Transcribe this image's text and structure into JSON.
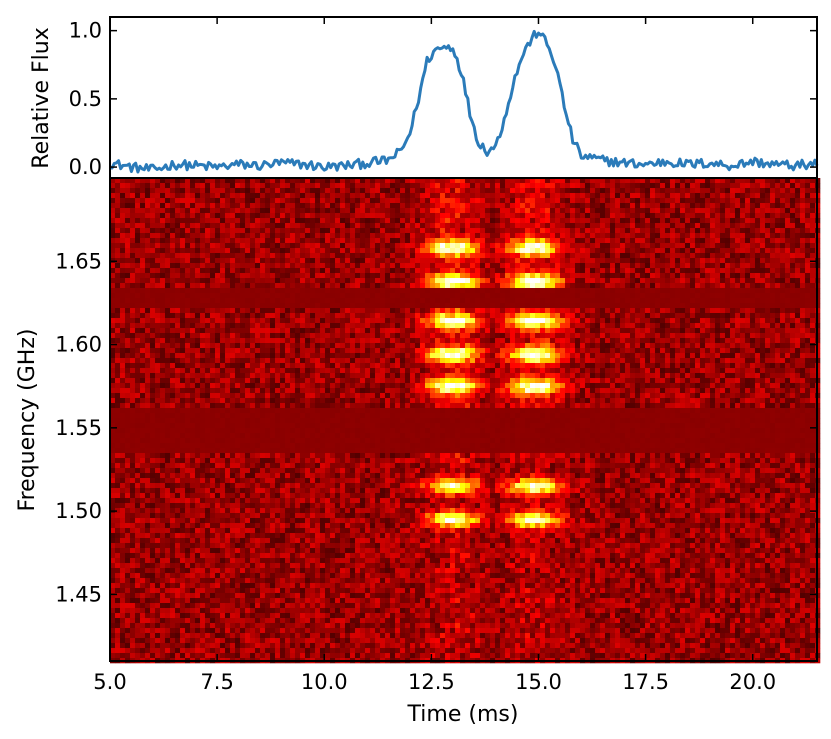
{
  "chart_data": [
    {
      "type": "line",
      "ylabel": "Relative Flux",
      "xlabel": "",
      "xlim": [
        5.0,
        21.5
      ],
      "ylim": [
        -0.08,
        1.1
      ],
      "yticks": [
        "0.0",
        "0.5",
        "1.0"
      ],
      "yticks_values": [
        0.0,
        0.5,
        1.0
      ],
      "line_color": "#2b7bb9",
      "series": [
        {
          "x": [
            5.0,
            5.5,
            6.0,
            6.5,
            7.0,
            7.5,
            8.0,
            8.5,
            9.0,
            9.5,
            10.0,
            10.5,
            11.0,
            11.5,
            11.8,
            12.0,
            12.2,
            12.4,
            12.6,
            12.8,
            13.0,
            13.2,
            13.4,
            13.6,
            13.8,
            14.0,
            14.2,
            14.4,
            14.6,
            14.8,
            15.0,
            15.2,
            15.4,
            15.6,
            15.8,
            16.0,
            16.5,
            17.0,
            17.5,
            18.0,
            18.5,
            19.0,
            19.5,
            20.0,
            20.5,
            21.0,
            21.5
          ],
          "values": [
            0.03,
            0.0,
            -0.02,
            0.02,
            0.01,
            0.0,
            0.02,
            0.01,
            0.03,
            0.02,
            0.0,
            0.01,
            0.03,
            0.05,
            0.12,
            0.25,
            0.5,
            0.78,
            0.86,
            0.88,
            0.88,
            0.7,
            0.4,
            0.18,
            0.12,
            0.15,
            0.35,
            0.6,
            0.8,
            0.92,
            1.0,
            0.9,
            0.75,
            0.45,
            0.2,
            0.08,
            0.05,
            0.03,
            0.02,
            0.04,
            0.02,
            0.03,
            0.01,
            0.04,
            0.02,
            0.01,
            0.03
          ]
        }
      ]
    },
    {
      "type": "heatmap",
      "xlabel": "Time (ms)",
      "ylabel": "Frequency (GHz)",
      "xlim": [
        5.0,
        21.5
      ],
      "ylim": [
        1.41,
        1.7
      ],
      "xticks": [
        "5.0",
        "7.5",
        "10.0",
        "12.5",
        "15.0",
        "17.5",
        "20.0"
      ],
      "xticks_values": [
        5.0,
        7.5,
        10.0,
        12.5,
        15.0,
        17.5,
        20.0
      ],
      "yticks": [
        "1.45",
        "1.50",
        "1.55",
        "1.60",
        "1.65"
      ],
      "yticks_values": [
        1.45,
        1.5,
        1.55,
        1.6,
        1.65
      ],
      "colormap": "hot",
      "masked_bands_ghz": [
        [
          1.623,
          1.634
        ],
        [
          1.535,
          1.563
        ]
      ],
      "bursts": [
        {
          "center_ms": 13.0,
          "width_ms": 1.0
        },
        {
          "center_ms": 14.9,
          "width_ms": 1.0
        }
      ],
      "bright_bands_ghz": [
        1.658,
        1.638,
        1.614,
        1.594,
        1.575,
        1.515,
        1.495
      ]
    }
  ]
}
